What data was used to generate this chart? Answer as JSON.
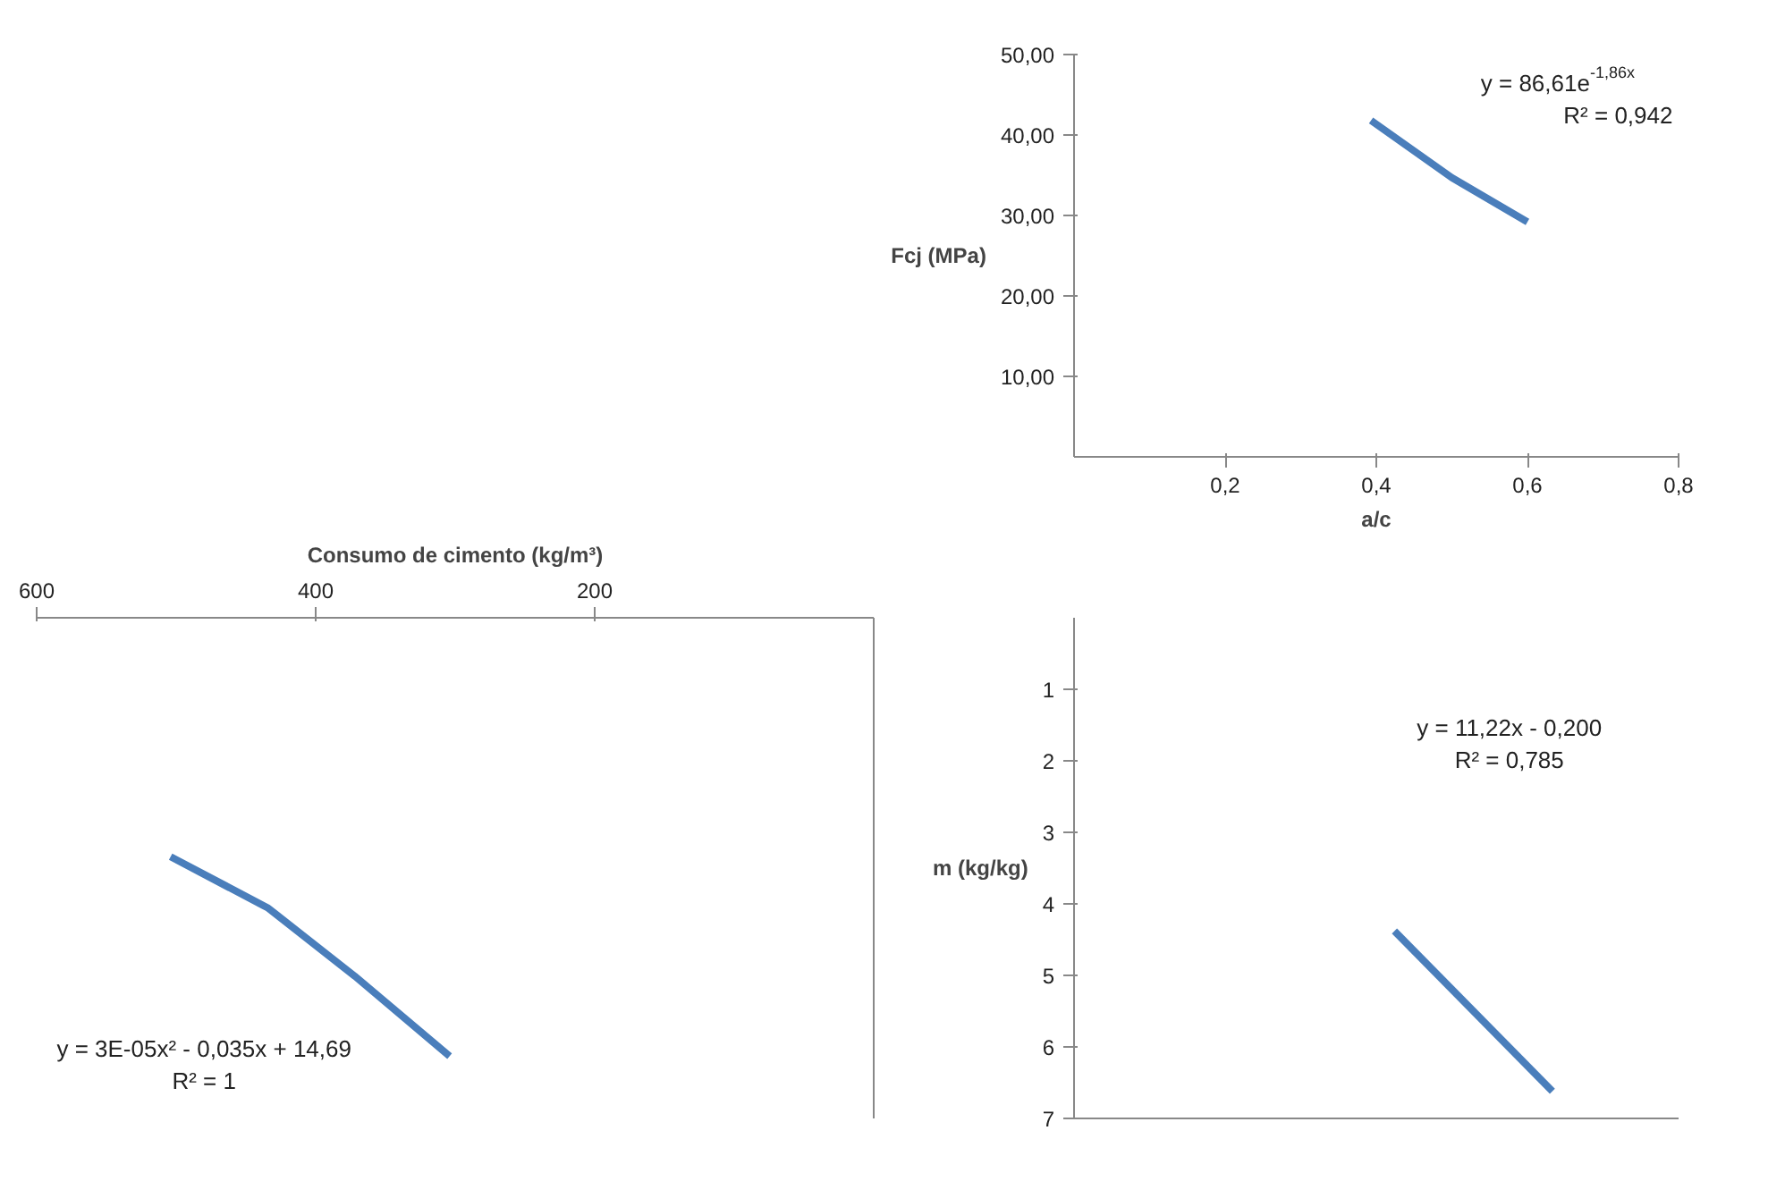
{
  "chart_data": [
    {
      "type": "line",
      "ylabel": "Fcj (MPa)",
      "xlabel": "a/c",
      "x": [
        0.393,
        0.5,
        0.6
      ],
      "series": [
        {
          "color": "#4a7ebb",
          "values": [
            41.8,
            34.7,
            29.2
          ]
        }
      ],
      "xlim": [
        0,
        0.8
      ],
      "xticks": [
        {
          "value": 0.2,
          "label": "0,2"
        },
        {
          "value": 0.4,
          "label": "0,4"
        },
        {
          "value": 0.6,
          "label": "0,6"
        },
        {
          "value": 0.8,
          "label": "0,8"
        }
      ],
      "ylim": [
        0,
        50
      ],
      "yticks": [
        {
          "value": 10,
          "label": "10,00"
        },
        {
          "value": 20,
          "label": "20,00"
        },
        {
          "value": 30,
          "label": "30,00"
        },
        {
          "value": 40,
          "label": "40,00"
        },
        {
          "value": 50,
          "label": "50,00"
        }
      ],
      "annotations": [
        "y = 86,61e$^{-1,86x}$",
        "R² = 0,942"
      ],
      "grid": false,
      "marker": "none",
      "line_style": "solid"
    },
    {
      "type": "line",
      "ylabel": "m (kg/kg)",
      "x": [
        0.424,
        0.633
      ],
      "series": [
        {
          "color": "#4a7ebb",
          "values": [
            4.38,
            6.62
          ]
        }
      ],
      "xlim": [
        0,
        0.8
      ],
      "ylim": [
        7,
        0
      ],
      "yticks": [
        1,
        2,
        3,
        4,
        5,
        6,
        7
      ],
      "annotations": [
        "y = 11,22x - 0,200",
        "R² = 0,785"
      ],
      "tick_labels": "y",
      "grid": false,
      "marker": "none",
      "line_style": "solid"
    },
    {
      "type": "line",
      "xlabel": "Consumo de cimento (kg/m³)",
      "x": [
        504,
        434,
        372,
        304
      ],
      "series": [
        {
          "color": "#4a7ebb",
          "values": [
            3.34,
            4.06,
            5.01,
            6.13
          ]
        }
      ],
      "xlim": [
        600,
        0
      ],
      "xticks": [
        200,
        400,
        600
      ],
      "ylim": [
        7,
        0
      ],
      "annotations": [
        "y = 3E-05x² - 0,035x + 14,69",
        "R² = 1"
      ],
      "tick_labels": "x",
      "grid": false,
      "marker": "none",
      "line_style": "solid"
    }
  ]
}
